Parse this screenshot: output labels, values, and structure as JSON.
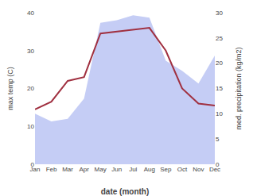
{
  "chart_data": {
    "type": "line",
    "xlabel": "date (month)",
    "ylabel": "max temp (C)",
    "y2label": "med. precipitation (kg/m2)",
    "categories": [
      "Jan",
      "Feb",
      "Mar",
      "Apr",
      "May",
      "Jun",
      "Jul",
      "Aug",
      "Sep",
      "Oct",
      "Nov",
      "Dec"
    ],
    "series": [
      {
        "type": "area",
        "axis": "y2",
        "color": "#c5cdf5",
        "values": [
          10.0,
          8.5,
          9.0,
          13.0,
          28.0,
          28.5,
          29.5,
          29.0,
          20.5,
          18.5,
          16.0,
          21.5
        ]
      },
      {
        "type": "line",
        "color": "#a03040",
        "values": [
          14.5,
          16.5,
          22.0,
          23.0,
          34.5,
          35.0,
          35.5,
          36.0,
          30.0,
          20.0,
          16.0,
          15.5
        ]
      }
    ],
    "ylim": [
      0,
      40
    ],
    "yticks": [
      0,
      10,
      20,
      30,
      40
    ],
    "y2lim": [
      0,
      30
    ],
    "y2ticks": [
      0,
      5,
      10,
      15,
      20,
      25,
      30
    ],
    "grid": false
  }
}
